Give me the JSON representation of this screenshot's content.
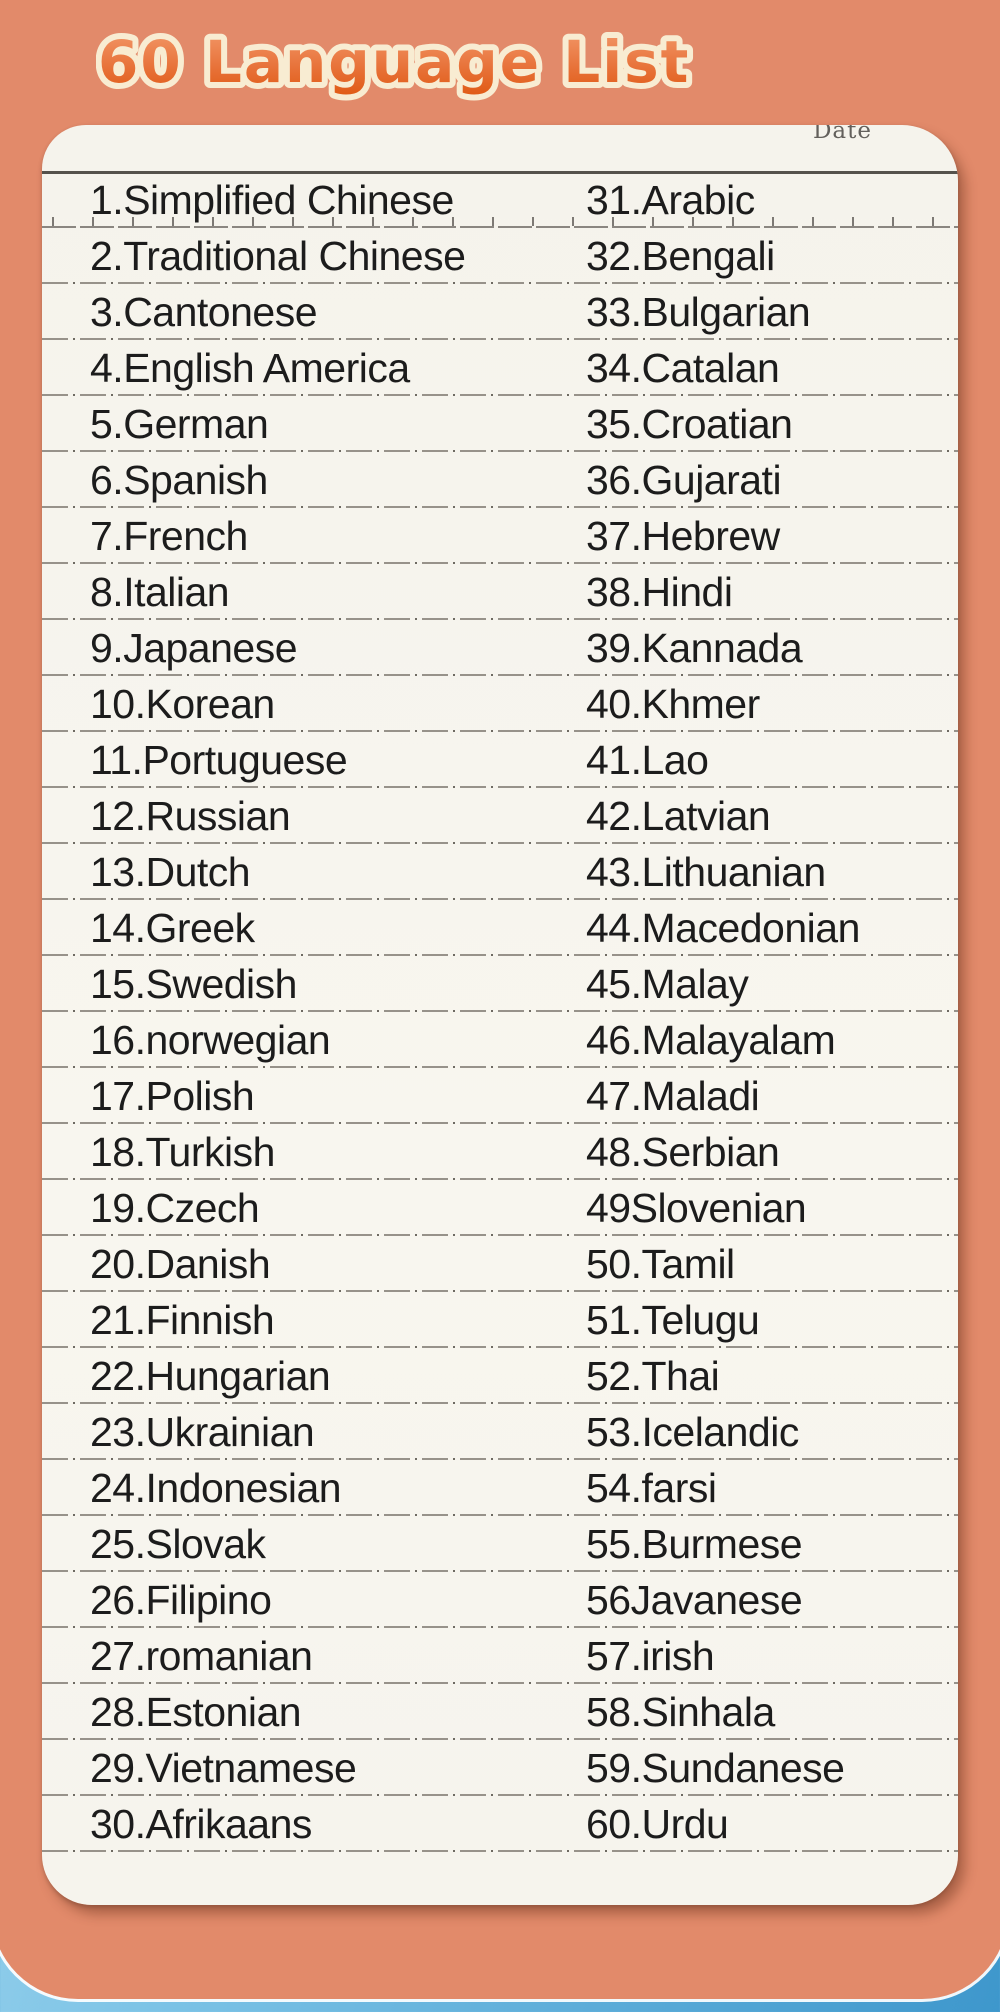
{
  "page": {
    "title": "60 Language List"
  },
  "card": {
    "date_label": "Date"
  },
  "list": {
    "left_column": [
      "1.Simplified Chinese",
      "2.Traditional Chinese",
      "3.Cantonese",
      "4.English America",
      "5.German",
      "6.Spanish",
      "7.French",
      "8.Italian",
      "9.Japanese",
      "10.Korean",
      "11.Portuguese",
      "12.Russian",
      "13.Dutch",
      "14.Greek",
      "15.Swedish",
      "16.norwegian",
      "17.Polish",
      "18.Turkish",
      "19.Czech",
      "20.Danish",
      "21.Finnish",
      "22.Hungarian",
      "23.Ukrainian",
      "24.Indonesian",
      "25.Slovak",
      "26.Filipino",
      "27.romanian",
      "28.Estonian",
      "29.Vietnamese",
      "30.Afrikaans"
    ],
    "right_column": [
      "31.Arabic",
      "32.Bengali",
      "33.Bulgarian",
      "34.Catalan",
      "35.Croatian",
      "36.Gujarati",
      "37.Hebrew",
      "38.Hindi",
      "39.Kannada",
      "40.Khmer",
      "41.Lao",
      "42.Latvian",
      "43.Lithuanian",
      "44.Macedonian",
      "45.Malay",
      "46.Malayalam",
      "47.Maladi",
      "48.Serbian",
      "49Slovenian",
      "50.Tamil",
      "51.Telugu",
      "52.Thai",
      "53.Icelandic",
      "54.farsi",
      "55.Burmese",
      "56Javanese",
      "57.irish",
      "58.Sinhala",
      "59.Sundanese",
      "60.Urdu"
    ]
  },
  "colors": {
    "background_blue_light": "#BCE4F4",
    "background_blue_dark": "#3E97CC",
    "panel_salmon": "#E28A6A",
    "title_orange_top": "#F39A6B",
    "title_orange_bottom": "#E05A14",
    "title_outline_cream": "#F8ECD2",
    "card_paper": "#F7F5EE",
    "list_text": "#1C1C1C",
    "rule_line_gray": "#97928A",
    "date_label_gray": "#63605C"
  }
}
